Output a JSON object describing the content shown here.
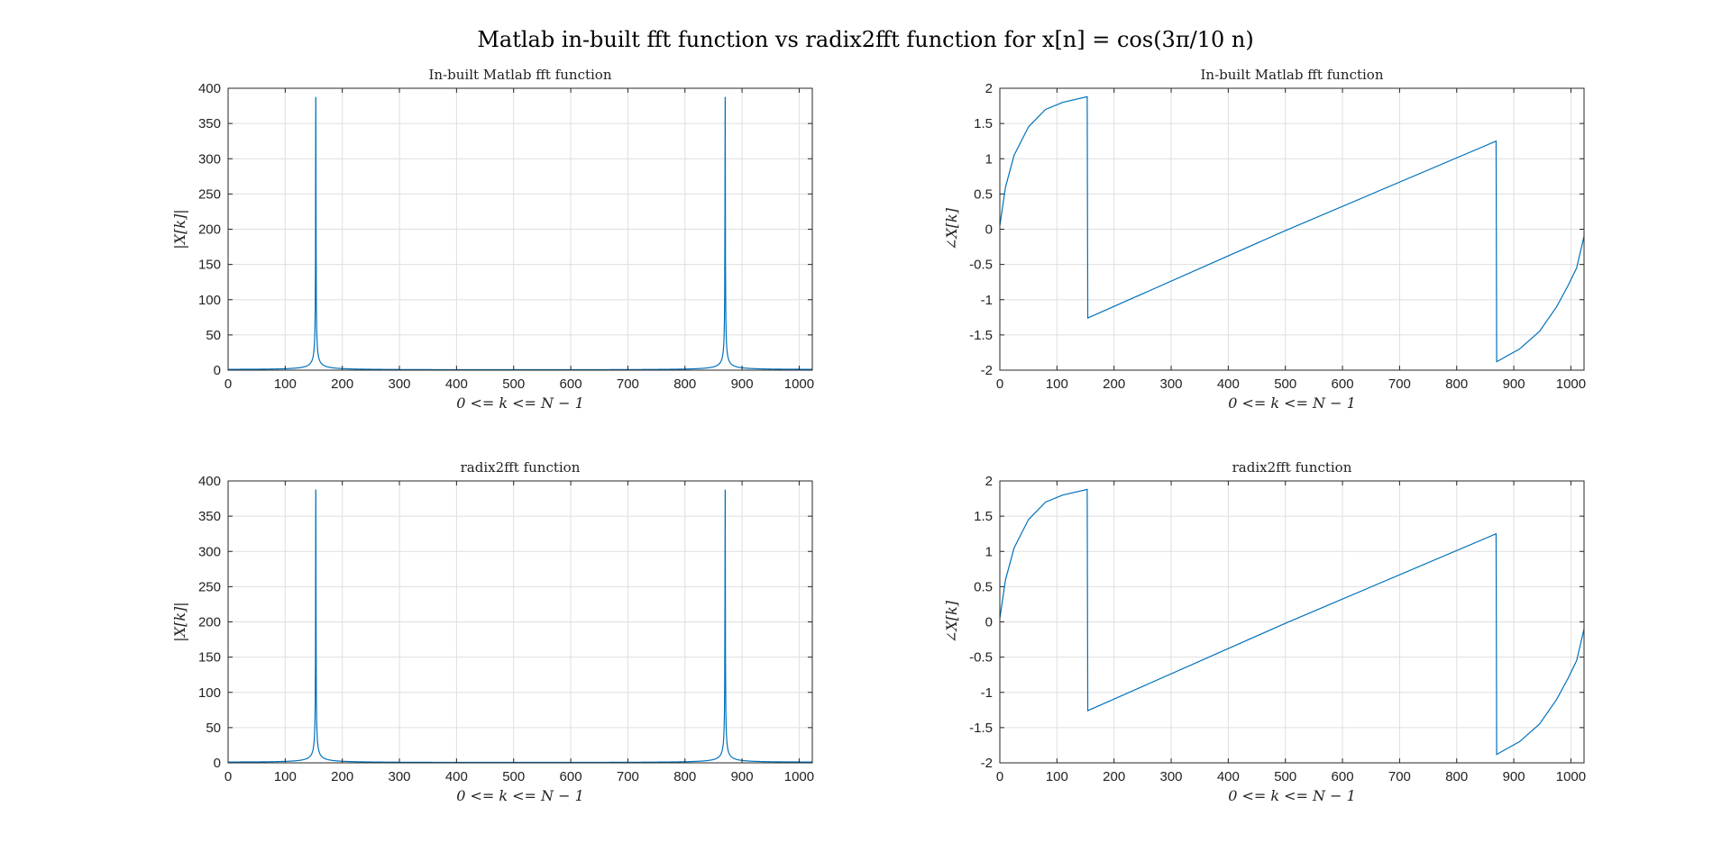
{
  "figure_title": "Matlab in-built fft function vs radix2fft function for x[n] = cos(3π/10 n)",
  "colors": {
    "series": "#0072BD",
    "grid": "#dfdfdf",
    "frame": "#262626"
  },
  "chart_data": [
    {
      "id": "mag-builtin",
      "type": "line",
      "title": "In-built Matlab fft function",
      "xlabel": "0 <= k <= N − 1",
      "ylabel": "|X[k]|",
      "xlim": [
        0,
        1023
      ],
      "ylim": [
        0,
        400
      ],
      "xticks": [
        0,
        100,
        200,
        300,
        400,
        500,
        600,
        700,
        800,
        900,
        1000
      ],
      "yticks": [
        0,
        50,
        100,
        150,
        200,
        250,
        300,
        350,
        400
      ],
      "grid": true,
      "series": [
        {
          "kind": "magnitude",
          "N": 1024,
          "peaks": [
            153.6,
            870.4
          ],
          "peak_value": 387
        }
      ]
    },
    {
      "id": "phase-builtin",
      "type": "line",
      "title": "In-built Matlab fft function",
      "xlabel": "0 <= k <= N − 1",
      "ylabel": "∠X[k]",
      "xlim": [
        0,
        1023
      ],
      "ylim": [
        -2,
        2
      ],
      "xticks": [
        0,
        100,
        200,
        300,
        400,
        500,
        600,
        700,
        800,
        900,
        1000
      ],
      "yticks": [
        -2,
        -1.5,
        -1,
        -0.5,
        0,
        0.5,
        1,
        1.5,
        2
      ],
      "grid": true,
      "series": [
        {
          "kind": "phase",
          "points": [
            [
              0,
              0.05
            ],
            [
              10,
              0.6
            ],
            [
              25,
              1.05
            ],
            [
              50,
              1.45
            ],
            [
              80,
              1.7
            ],
            [
              110,
              1.8
            ],
            [
              153,
              1.88
            ],
            [
              154,
              -1.26
            ],
            [
              500,
              -0.02
            ],
            [
              869,
              1.25
            ],
            [
              870,
              -1.88
            ],
            [
              910,
              -1.7
            ],
            [
              945,
              -1.45
            ],
            [
              975,
              -1.1
            ],
            [
              995,
              -0.8
            ],
            [
              1010,
              -0.55
            ],
            [
              1023,
              -0.1
            ]
          ]
        }
      ]
    },
    {
      "id": "mag-radix2",
      "type": "line",
      "title": "radix2fft function",
      "xlabel": "0 <= k <= N − 1",
      "ylabel": "|X[k]|",
      "xlim": [
        0,
        1023
      ],
      "ylim": [
        0,
        400
      ],
      "xticks": [
        0,
        100,
        200,
        300,
        400,
        500,
        600,
        700,
        800,
        900,
        1000
      ],
      "yticks": [
        0,
        50,
        100,
        150,
        200,
        250,
        300,
        350,
        400
      ],
      "grid": true,
      "series": [
        {
          "kind": "magnitude",
          "N": 1024,
          "peaks": [
            153.6,
            870.4
          ],
          "peak_value": 387
        }
      ]
    },
    {
      "id": "phase-radix2",
      "type": "line",
      "title": "radix2fft function",
      "xlabel": "0 <= k <= N − 1",
      "ylabel": "∠X[k]",
      "xlim": [
        0,
        1023
      ],
      "ylim": [
        -2,
        2
      ],
      "xticks": [
        0,
        100,
        200,
        300,
        400,
        500,
        600,
        700,
        800,
        900,
        1000
      ],
      "yticks": [
        -2,
        -1.5,
        -1,
        -0.5,
        0,
        0.5,
        1,
        1.5,
        2
      ],
      "grid": true,
      "series": [
        {
          "kind": "phase",
          "points": [
            [
              0,
              0.05
            ],
            [
              10,
              0.6
            ],
            [
              25,
              1.05
            ],
            [
              50,
              1.45
            ],
            [
              80,
              1.7
            ],
            [
              110,
              1.8
            ],
            [
              153,
              1.88
            ],
            [
              154,
              -1.26
            ],
            [
              500,
              -0.02
            ],
            [
              869,
              1.25
            ],
            [
              870,
              -1.88
            ],
            [
              910,
              -1.7
            ],
            [
              945,
              -1.45
            ],
            [
              975,
              -1.1
            ],
            [
              995,
              -0.8
            ],
            [
              1010,
              -0.55
            ],
            [
              1023,
              -0.1
            ]
          ]
        }
      ]
    }
  ]
}
